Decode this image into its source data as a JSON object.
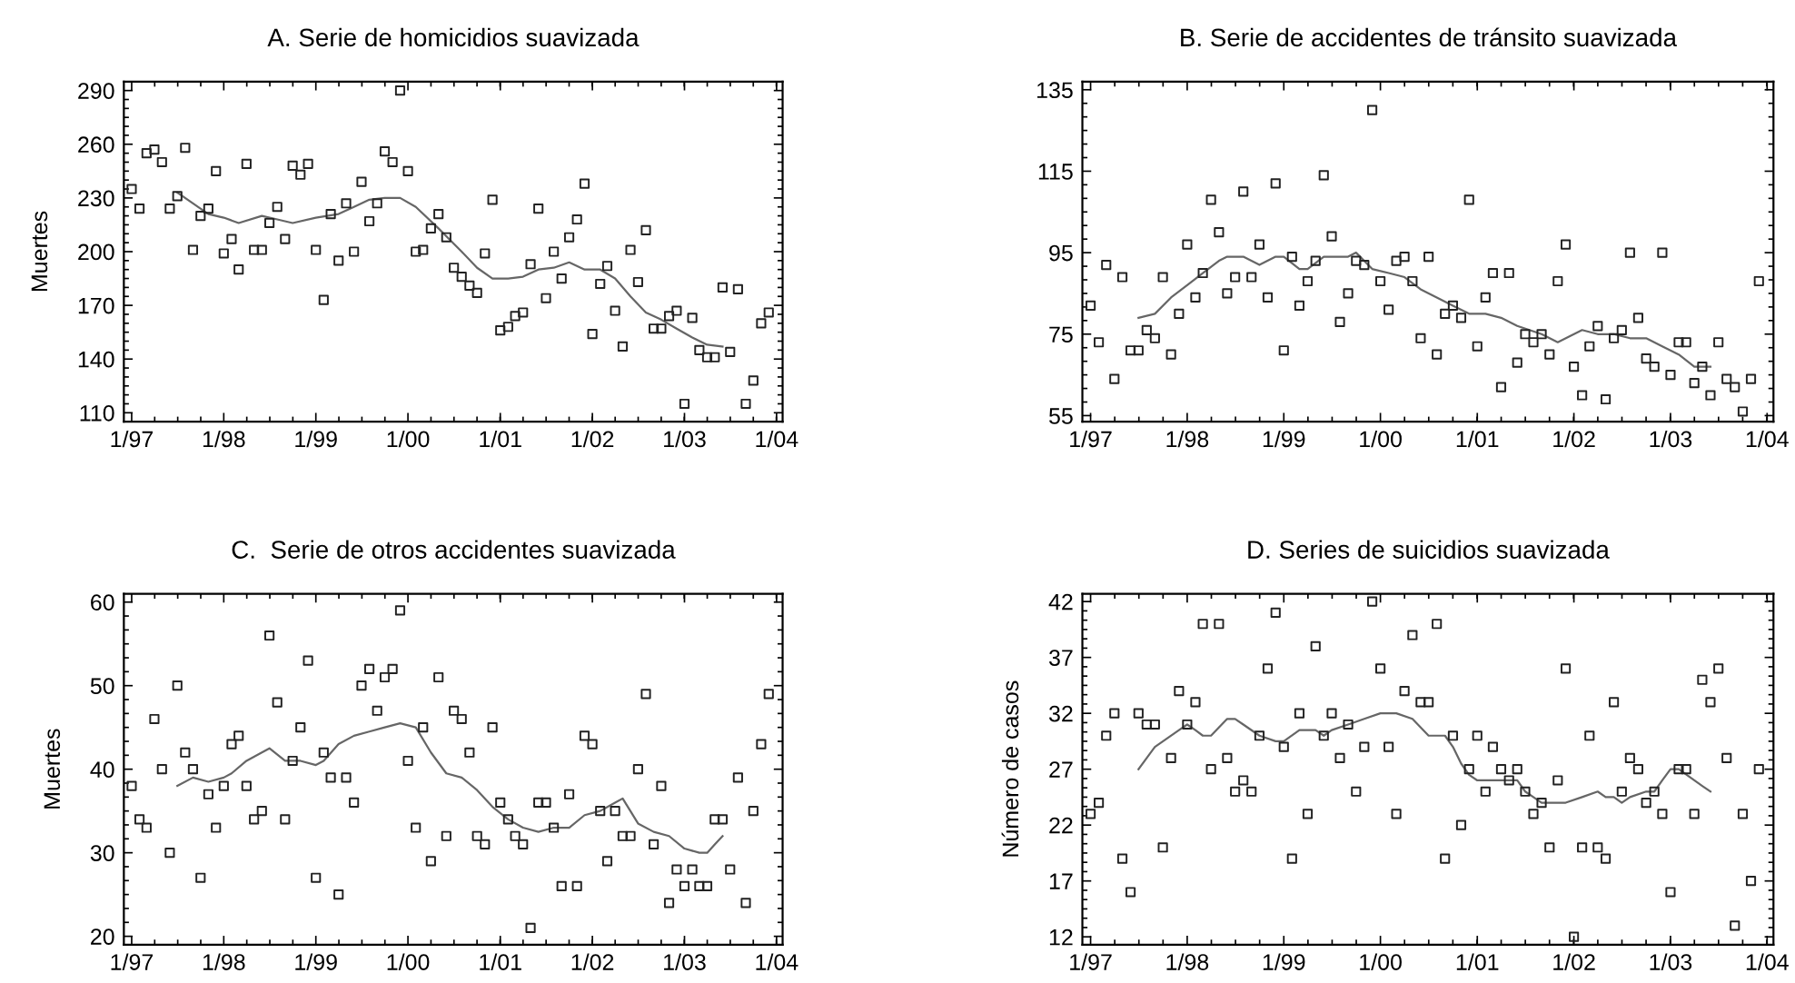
{
  "chart_data": [
    {
      "type": "scatter",
      "title": "A. Serie de homicidios suavizada",
      "ylabel": "Muertes",
      "x": [
        "1997-01",
        "1997-02",
        "1997-03",
        "1997-04",
        "1997-05",
        "1997-06",
        "1997-07",
        "1997-08",
        "1997-09",
        "1997-10",
        "1997-11",
        "1997-12",
        "1998-01",
        "1998-02",
        "1998-03",
        "1998-04",
        "1998-05",
        "1998-06",
        "1998-07",
        "1998-08",
        "1998-09",
        "1998-10",
        "1998-11",
        "1998-12",
        "1999-01",
        "1999-02",
        "1999-03",
        "1999-04",
        "1999-05",
        "1999-06",
        "1999-07",
        "1999-08",
        "1999-09",
        "1999-10",
        "1999-11",
        "1999-12",
        "2000-01",
        "2000-02",
        "2000-03",
        "2000-04",
        "2000-05",
        "2000-06",
        "2000-07",
        "2000-08",
        "2000-09",
        "2000-10",
        "2000-11",
        "2000-12",
        "2001-01",
        "2001-02",
        "2001-03",
        "2001-04",
        "2001-05",
        "2001-06",
        "2001-07",
        "2001-08",
        "2001-09",
        "2001-10",
        "2001-11",
        "2001-12",
        "2002-01",
        "2002-02",
        "2002-03",
        "2002-04",
        "2002-05",
        "2002-06",
        "2002-07",
        "2002-08",
        "2002-09",
        "2002-10",
        "2002-11",
        "2002-12",
        "2003-01",
        "2003-02",
        "2003-03",
        "2003-04",
        "2003-05",
        "2003-06",
        "2003-07",
        "2003-08",
        "2003-09",
        "2003-10",
        "2003-11",
        "2003-12"
      ],
      "xlim": [
        "1996-12-01",
        "2004-01-25"
      ],
      "xticks": [
        {
          "value": "1997-01",
          "label": "1/97"
        },
        {
          "value": "1998-01",
          "label": "1/98"
        },
        {
          "value": "1999-01",
          "label": "1/99"
        },
        {
          "value": "2000-01",
          "label": "1/00"
        },
        {
          "value": "2001-01",
          "label": "1/01"
        },
        {
          "value": "2002-01",
          "label": "1/02"
        },
        {
          "value": "2003-01",
          "label": "1/03"
        },
        {
          "value": "2004-01",
          "label": "1/04"
        }
      ],
      "ylim": [
        105,
        295
      ],
      "yticks": [
        110,
        140,
        170,
        200,
        230,
        260,
        290
      ],
      "series": [
        {
          "color": "#222222",
          "marker": "square",
          "values": [
            235,
            224,
            255,
            257,
            250,
            224,
            231,
            258,
            201,
            220,
            224,
            245,
            199,
            207,
            190,
            249,
            201,
            201,
            216,
            225,
            207,
            248,
            243,
            249,
            201,
            173,
            221,
            195,
            227,
            200,
            239,
            217,
            227,
            256,
            250,
            290,
            245,
            200,
            201,
            213,
            221,
            208,
            191,
            186,
            181,
            177,
            199,
            229,
            156,
            158,
            164,
            166,
            193,
            224,
            174,
            200,
            185,
            208,
            218,
            238,
            154,
            182,
            192,
            167,
            147,
            201,
            183,
            212,
            157,
            157,
            164,
            167,
            115,
            163,
            145,
            141,
            141,
            180,
            144,
            179,
            115,
            128,
            160,
            166
          ]
        },
        {
          "type": "line",
          "color": "#666666",
          "x": [
            "1997-07",
            "1997-09",
            "1997-11",
            "1998-01",
            "1998-03",
            "1998-06",
            "1998-08",
            "1998-10",
            "1999-01",
            "1999-04",
            "1999-06",
            "1999-08",
            "1999-10",
            "1999-12",
            "2000-02",
            "2000-05",
            "2000-08",
            "2000-10",
            "2000-12",
            "2001-02",
            "2001-04",
            "2001-06",
            "2001-08",
            "2001-10",
            "2001-12",
            "2002-02",
            "2002-04",
            "2002-06",
            "2002-08",
            "2002-10",
            "2002-12",
            "2003-02",
            "2003-04",
            "2003-06"
          ],
          "values": [
            233,
            227,
            221,
            219,
            216,
            220,
            218,
            216,
            219,
            221,
            225,
            229,
            230,
            230,
            225,
            213,
            200,
            191,
            185,
            185,
            186,
            190,
            191,
            194,
            190,
            190,
            185,
            175,
            166,
            162,
            157,
            152,
            148,
            147
          ]
        }
      ]
    },
    {
      "type": "scatter",
      "title": "B. Serie de accidentes de tránsito suavizada",
      "x": [
        "1997-01",
        "1997-02",
        "1997-03",
        "1997-04",
        "1997-05",
        "1997-06",
        "1997-07",
        "1997-08",
        "1997-09",
        "1997-10",
        "1997-11",
        "1997-12",
        "1998-01",
        "1998-02",
        "1998-03",
        "1998-04",
        "1998-05",
        "1998-06",
        "1998-07",
        "1998-08",
        "1998-09",
        "1998-10",
        "1998-11",
        "1998-12",
        "1999-01",
        "1999-02",
        "1999-03",
        "1999-04",
        "1999-05",
        "1999-06",
        "1999-07",
        "1999-08",
        "1999-09",
        "1999-10",
        "1999-11",
        "1999-12",
        "2000-01",
        "2000-02",
        "2000-03",
        "2000-04",
        "2000-05",
        "2000-06",
        "2000-07",
        "2000-08",
        "2000-09",
        "2000-10",
        "2000-11",
        "2000-12",
        "2001-01",
        "2001-02",
        "2001-03",
        "2001-04",
        "2001-05",
        "2001-06",
        "2001-07",
        "2001-08",
        "2001-09",
        "2001-10",
        "2001-11",
        "2001-12",
        "2002-01",
        "2002-02",
        "2002-03",
        "2002-04",
        "2002-05",
        "2002-06",
        "2002-07",
        "2002-08",
        "2002-09",
        "2002-10",
        "2002-11",
        "2002-12",
        "2003-01",
        "2003-02",
        "2003-03",
        "2003-04",
        "2003-05",
        "2003-06",
        "2003-07",
        "2003-08",
        "2003-09",
        "2003-10",
        "2003-11",
        "2003-12"
      ],
      "xlim": [
        "1996-12-01",
        "2004-01-25"
      ],
      "xticks": [
        {
          "value": "1997-01",
          "label": "1/97"
        },
        {
          "value": "1998-01",
          "label": "1/98"
        },
        {
          "value": "1999-01",
          "label": "1/99"
        },
        {
          "value": "2000-01",
          "label": "1/00"
        },
        {
          "value": "2001-01",
          "label": "1/01"
        },
        {
          "value": "2002-01",
          "label": "1/02"
        },
        {
          "value": "2003-01",
          "label": "1/03"
        },
        {
          "value": "2004-01",
          "label": "1/04"
        }
      ],
      "ylim": [
        53.5,
        137
      ],
      "yticks": [
        55,
        75,
        95,
        115,
        135
      ],
      "series": [
        {
          "color": "#222222",
          "marker": "square",
          "values": [
            82,
            73,
            92,
            64,
            89,
            71,
            71,
            76,
            74,
            89,
            70,
            80,
            97,
            84,
            90,
            108,
            100,
            85,
            89,
            110,
            89,
            97,
            84,
            112,
            71,
            94,
            82,
            88,
            93,
            114,
            99,
            78,
            85,
            93,
            92,
            130,
            88,
            81,
            93,
            94,
            88,
            74,
            94,
            70,
            80,
            82,
            79,
            108,
            72,
            84,
            90,
            62,
            90,
            68,
            75,
            73,
            75,
            70,
            88,
            97,
            67,
            60,
            72,
            77,
            59,
            74,
            76,
            95,
            79,
            69,
            67,
            95,
            65,
            73,
            73,
            63,
            67,
            60,
            73,
            64,
            62,
            56,
            64,
            88
          ]
        },
        {
          "type": "line",
          "color": "#666666",
          "x": [
            "1997-07",
            "1997-09",
            "1997-11",
            "1998-01",
            "1998-03",
            "1998-05",
            "1998-06",
            "1998-08",
            "1998-10",
            "1998-12",
            "1999-01",
            "1999-03",
            "1999-04",
            "1999-06",
            "1999-09",
            "1999-10",
            "1999-12",
            "2000-02",
            "2000-04",
            "2000-06",
            "2000-08",
            "2000-10",
            "2000-12",
            "2001-02",
            "2001-04",
            "2001-06",
            "2001-09",
            "2001-11",
            "2002-02",
            "2002-04",
            "2002-06",
            "2002-08",
            "2002-10",
            "2002-12",
            "2003-02",
            "2003-04",
            "2003-06"
          ],
          "values": [
            79,
            80,
            84,
            87,
            90,
            93,
            94,
            94,
            92,
            94,
            94,
            91,
            91,
            94,
            94,
            95,
            91,
            90,
            89,
            86,
            84,
            82,
            80,
            80,
            79,
            77,
            75,
            73,
            76,
            75,
            75,
            74,
            74,
            72,
            70,
            67,
            67
          ]
        }
      ]
    },
    {
      "type": "scatter",
      "title": "C.  Serie de otros accidentes suavizada",
      "ylabel": "Muertes",
      "x": [
        "1997-01",
        "1997-02",
        "1997-03",
        "1997-04",
        "1997-05",
        "1997-06",
        "1997-07",
        "1997-08",
        "1997-09",
        "1997-10",
        "1997-11",
        "1997-12",
        "1998-01",
        "1998-02",
        "1998-03",
        "1998-04",
        "1998-05",
        "1998-06",
        "1998-07",
        "1998-08",
        "1998-09",
        "1998-10",
        "1998-11",
        "1998-12",
        "1999-01",
        "1999-02",
        "1999-03",
        "1999-04",
        "1999-05",
        "1999-06",
        "1999-07",
        "1999-08",
        "1999-09",
        "1999-10",
        "1999-11",
        "1999-12",
        "2000-01",
        "2000-02",
        "2000-03",
        "2000-04",
        "2000-05",
        "2000-06",
        "2000-07",
        "2000-08",
        "2000-09",
        "2000-10",
        "2000-11",
        "2000-12",
        "2001-01",
        "2001-02",
        "2001-03",
        "2001-04",
        "2001-05",
        "2001-06",
        "2001-07",
        "2001-08",
        "2001-09",
        "2001-10",
        "2001-11",
        "2001-12",
        "2002-01",
        "2002-02",
        "2002-03",
        "2002-04",
        "2002-05",
        "2002-06",
        "2002-07",
        "2002-08",
        "2002-09",
        "2002-10",
        "2002-11",
        "2002-12",
        "2003-01",
        "2003-02",
        "2003-03",
        "2003-04",
        "2003-05",
        "2003-06",
        "2003-07",
        "2003-08",
        "2003-09",
        "2003-10",
        "2003-11",
        "2003-12"
      ],
      "xlim": [
        "1996-12-01",
        "2004-01-25"
      ],
      "xticks": [
        {
          "value": "1997-01",
          "label": "1/97"
        },
        {
          "value": "1998-01",
          "label": "1/98"
        },
        {
          "value": "1999-01",
          "label": "1/99"
        },
        {
          "value": "2000-01",
          "label": "1/00"
        },
        {
          "value": "2001-01",
          "label": "1/01"
        },
        {
          "value": "2002-01",
          "label": "1/02"
        },
        {
          "value": "2003-01",
          "label": "1/03"
        },
        {
          "value": "2004-01",
          "label": "1/04"
        }
      ],
      "ylim": [
        19,
        61
      ],
      "yticks": [
        20,
        30,
        40,
        50,
        60
      ],
      "series": [
        {
          "color": "#222222",
          "marker": "square",
          "values": [
            38,
            34,
            33,
            46,
            40,
            30,
            50,
            42,
            40,
            27,
            37,
            33,
            38,
            43,
            44,
            38,
            34,
            35,
            56,
            48,
            34,
            41,
            45,
            53,
            27,
            42,
            39,
            25,
            39,
            36,
            50,
            52,
            47,
            51,
            52,
            59,
            41,
            33,
            45,
            29,
            51,
            32,
            47,
            46,
            42,
            32,
            31,
            45,
            36,
            34,
            32,
            31,
            21,
            36,
            36,
            33,
            26,
            37,
            26,
            44,
            43,
            35,
            29,
            35,
            32,
            32,
            40,
            49,
            31,
            38,
            24,
            28,
            26,
            28,
            26,
            26,
            34,
            34,
            28,
            39,
            24,
            35,
            43,
            49
          ]
        },
        {
          "type": "line",
          "color": "#666666",
          "x": [
            "1997-07",
            "1997-09",
            "1997-11",
            "1998-01",
            "1998-02",
            "1998-04",
            "1998-06",
            "1998-07",
            "1998-09",
            "1998-10",
            "1998-11",
            "1999-01",
            "1999-02",
            "1999-04",
            "1999-06",
            "1999-08",
            "1999-10",
            "1999-12",
            "2000-02",
            "2000-04",
            "2000-06",
            "2000-08",
            "2000-10",
            "2000-12",
            "2001-02",
            "2001-04",
            "2001-06",
            "2001-08",
            "2001-10",
            "2001-12",
            "2002-02",
            "2002-04",
            "2002-05",
            "2002-07",
            "2002-09",
            "2002-11",
            "2003-01",
            "2003-03",
            "2003-04",
            "2003-05",
            "2003-06"
          ],
          "values": [
            38,
            39,
            38.5,
            39,
            39.5,
            41,
            42,
            42.5,
            41,
            41,
            41,
            40.5,
            41,
            43,
            44,
            44.5,
            45,
            45.5,
            45,
            42,
            39.5,
            39,
            37.5,
            35.5,
            34,
            33,
            32.5,
            33,
            33,
            34.5,
            35,
            36,
            36.5,
            33.5,
            32.5,
            32,
            30.5,
            30,
            30,
            31,
            32
          ]
        }
      ]
    },
    {
      "type": "scatter",
      "title": "D. Series de suicidios suavizada",
      "ylabel": "Número de casos",
      "x": [
        "1997-01",
        "1997-02",
        "1997-03",
        "1997-04",
        "1997-05",
        "1997-06",
        "1997-07",
        "1997-08",
        "1997-09",
        "1997-10",
        "1997-11",
        "1997-12",
        "1998-01",
        "1998-02",
        "1998-03",
        "1998-04",
        "1998-05",
        "1998-06",
        "1998-07",
        "1998-08",
        "1998-09",
        "1998-10",
        "1998-11",
        "1998-12",
        "1999-01",
        "1999-02",
        "1999-03",
        "1999-04",
        "1999-05",
        "1999-06",
        "1999-07",
        "1999-08",
        "1999-09",
        "1999-10",
        "1999-11",
        "1999-12",
        "2000-01",
        "2000-02",
        "2000-03",
        "2000-04",
        "2000-05",
        "2000-06",
        "2000-07",
        "2000-08",
        "2000-09",
        "2000-10",
        "2000-11",
        "2000-12",
        "2001-01",
        "2001-02",
        "2001-03",
        "2001-04",
        "2001-05",
        "2001-06",
        "2001-07",
        "2001-08",
        "2001-09",
        "2001-10",
        "2001-11",
        "2001-12",
        "2002-01",
        "2002-02",
        "2002-03",
        "2002-04",
        "2002-05",
        "2002-06",
        "2002-07",
        "2002-08",
        "2002-09",
        "2002-10",
        "2002-11",
        "2002-12",
        "2003-01",
        "2003-02",
        "2003-03",
        "2003-04",
        "2003-05",
        "2003-06",
        "2003-07",
        "2003-08",
        "2003-09",
        "2003-10",
        "2003-11",
        "2003-12"
      ],
      "xlim": [
        "1996-12-01",
        "2004-01-25"
      ],
      "xticks": [
        {
          "value": "1997-01",
          "label": "1/97"
        },
        {
          "value": "1998-01",
          "label": "1/98"
        },
        {
          "value": "1999-01",
          "label": "1/99"
        },
        {
          "value": "2000-01",
          "label": "1/00"
        },
        {
          "value": "2001-01",
          "label": "1/01"
        },
        {
          "value": "2002-01",
          "label": "1/02"
        },
        {
          "value": "2003-01",
          "label": "1/03"
        },
        {
          "value": "2004-01",
          "label": "1/04"
        }
      ],
      "ylim": [
        11.3,
        42.7
      ],
      "yticks": [
        12,
        17,
        22,
        27,
        32,
        37,
        42
      ],
      "series": [
        {
          "color": "#222222",
          "marker": "square",
          "values": [
            23,
            24,
            30,
            32,
            19,
            16,
            32,
            31,
            31,
            20,
            28,
            34,
            31,
            33,
            40,
            27,
            40,
            28,
            25,
            26,
            25,
            30,
            36,
            41,
            29,
            19,
            32,
            23,
            38,
            30,
            32,
            28,
            31,
            25,
            29,
            42,
            36,
            29,
            23,
            34,
            39,
            33,
            33,
            40,
            19,
            30,
            22,
            27,
            30,
            25,
            29,
            27,
            26,
            27,
            25,
            23,
            24,
            20,
            26,
            36,
            12,
            20,
            30,
            20,
            19,
            33,
            25,
            28,
            27,
            24,
            25,
            23,
            16,
            27,
            27,
            23,
            35,
            33,
            36,
            28,
            13,
            23,
            17,
            27
          ]
        },
        {
          "type": "line",
          "color": "#666666",
          "x": [
            "1997-07",
            "1997-09",
            "1997-12",
            "1998-01",
            "1998-02",
            "1998-03",
            "1998-04",
            "1998-06",
            "1998-07",
            "1998-08",
            "1998-10",
            "1998-12",
            "1999-01",
            "1999-03",
            "1999-04",
            "1999-05",
            "1999-06",
            "1999-07",
            "1999-09",
            "1999-11",
            "2000-01",
            "2000-02",
            "2000-03",
            "2000-05",
            "2000-07",
            "2000-08",
            "2000-09",
            "2000-10",
            "2000-11",
            "2000-12",
            "2001-01",
            "2001-02",
            "2001-03",
            "2001-04",
            "2001-06",
            "2001-07",
            "2001-08",
            "2001-09",
            "2001-10",
            "2001-12",
            "2002-02",
            "2002-04",
            "2002-05",
            "2002-06",
            "2002-07",
            "2002-08",
            "2002-10",
            "2002-11",
            "2002-12",
            "2003-01",
            "2003-02",
            "2003-04",
            "2003-05",
            "2003-06"
          ],
          "values": [
            27,
            29,
            30.5,
            31,
            30.5,
            30,
            30,
            31.5,
            31.5,
            31,
            30,
            29.5,
            29.5,
            30.5,
            30.5,
            30.5,
            30,
            30.5,
            31,
            31.5,
            32,
            32,
            32,
            31.5,
            30,
            30,
            30,
            29,
            27.5,
            26.5,
            26,
            26,
            26,
            26,
            26,
            25,
            24.5,
            24,
            24,
            24,
            24.5,
            25,
            24.5,
            24.5,
            24,
            24.5,
            25,
            25,
            26,
            27,
            27,
            26,
            25.5,
            25
          ]
        }
      ]
    }
  ]
}
